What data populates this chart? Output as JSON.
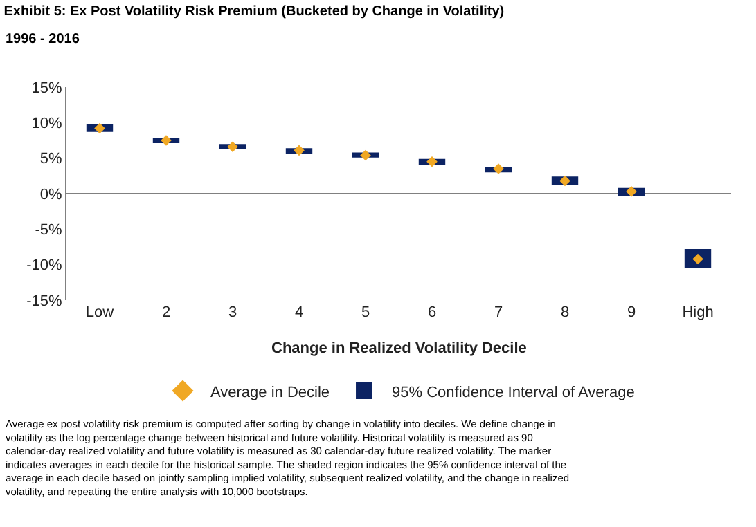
{
  "chart_data": {
    "type": "bar",
    "title": "Exhibit 5: Ex Post Volatility Risk Premium (Bucketed by Change in Volatility)",
    "subtitle": "1996 - 2016",
    "xlabel": "Change in Realized Volatility Decile",
    "categories": [
      "Low",
      "2",
      "3",
      "4",
      "5",
      "6",
      "7",
      "8",
      "9",
      "High"
    ],
    "series": [
      {
        "name": "Average in Decile",
        "type": "scatter",
        "color": "#f0a824",
        "values": [
          9.2,
          7.5,
          6.6,
          6.1,
          5.4,
          4.5,
          3.5,
          1.8,
          0.3,
          -9.2
        ]
      },
      {
        "name": "95% Confidence Interval of Average",
        "color": "#0c2363",
        "base": [
          8.7,
          7.1,
          6.3,
          5.6,
          5.1,
          4.1,
          3.0,
          1.2,
          -0.3,
          -10.5
        ],
        "values": [
          1.1,
          0.8,
          0.7,
          0.8,
          0.7,
          0.8,
          0.8,
          1.2,
          1.1,
          2.7
        ]
      }
    ],
    "marker": "diamond",
    "ylim": [
      -15,
      15
    ],
    "yticks": [
      {
        "value": -15,
        "label": "-15%"
      },
      {
        "value": -10,
        "label": "-10%"
      },
      {
        "value": -5,
        "label": "-5%"
      },
      {
        "value": 0,
        "label": "0%"
      },
      {
        "value": 5,
        "label": "5%"
      },
      {
        "value": 10,
        "label": "10%"
      },
      {
        "value": 15,
        "label": "15%"
      }
    ],
    "grid": false,
    "legend": "bottom",
    "ref_lines": [
      {
        "axis": "y",
        "value": 0,
        "color": "#808080"
      }
    ],
    "annotations": [
      "Average ex post volatility risk premium is computed after sorting by change in volatility into deciles. We define change in volatility as the log percentage change between historical and future volatility. Historical volatility is measured as 90 calendar-day realized volatility and future volatility is measured as 30 calendar-day future realized volatility. The marker indicates averages in each decile for the historical sample. The shaded region indicates the 95% confidence interval of the average in each decile based on jointly sampling implied volatility, subsequent realized volatility, and the change in realized volatility, and repeating the entire analysis with 10,000 bootstraps."
    ]
  }
}
